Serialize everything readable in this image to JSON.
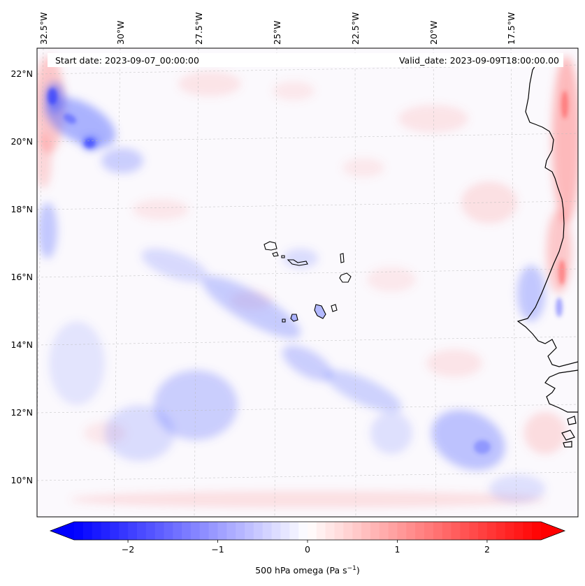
{
  "map": {
    "start_label": "Start date: 2023-09-07_00:00:00",
    "valid_label": "Valid_date: 2023-09-09T18:00:00.00",
    "lon_labels": [
      "32.5°W",
      "30°W",
      "27.5°W",
      "25°W",
      "22.5°W",
      "20°W",
      "17.5°W"
    ],
    "lat_labels": [
      "22°N",
      "20°N",
      "18°N",
      "16°N",
      "14°N",
      "12°N",
      "10°N"
    ],
    "colorbar": {
      "label": "500 hPa omega (Pa s",
      "label_sup": "−1",
      "label_close": ")",
      "ticks": [
        "−2",
        "−1",
        "0",
        "1",
        "2"
      ],
      "range": [
        -2.6,
        2.6
      ],
      "colors": {
        "min": "#0000ff",
        "mid": "#ffffff",
        "max": "#ff0000"
      }
    }
  }
}
